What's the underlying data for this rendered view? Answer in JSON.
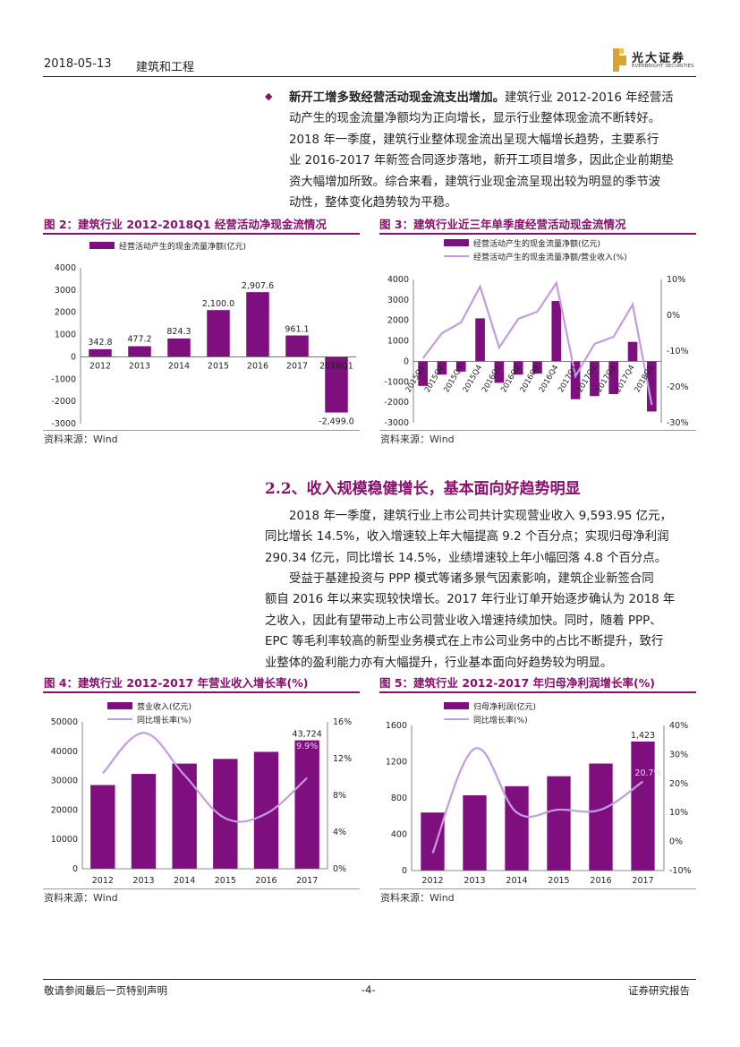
{
  "header": {
    "date": "2018-05-13",
    "category": "建筑和工程",
    "logo_cn": "光大证券",
    "logo_en": "EVERBRIGHT SECURITIES"
  },
  "bullet": {
    "lead": "新开工增多致经营活动现金流支出增加。",
    "lines": [
      "建筑行业 2012-2016 年经营活",
      "动产生的现金流量净额均为正向增长，显示行业整体现金流不断转好。",
      "2018 年一季度，建筑行业整体现金流出呈现大幅增长趋势，主要系行",
      "业 2016-2017 年新签合同逐步落地，新开工项目增多，因此企业前期垫",
      "资大幅增加所致。综合来看，建筑行业现金流呈现出较为明显的季节波",
      "动性，整体变化趋势较为平稳。"
    ]
  },
  "fig2": {
    "title": "图 2：建筑行业 2012-2018Q1 经营活动净现金流情况",
    "source": "资料来源：Wind",
    "chart_data": {
      "type": "bar",
      "legend": [
        "经营活动产生的现金流量净额(亿元)"
      ],
      "categories": [
        "2012",
        "2013",
        "2014",
        "2015",
        "2016",
        "2017",
        "2018Q1"
      ],
      "values": [
        342.8,
        477.2,
        824.3,
        2100.0,
        2907.6,
        961.1,
        -2499.0
      ],
      "labels": [
        "342.8",
        "477.2",
        "824.3",
        "2,100.0",
        "2,907.6",
        "961.1",
        "-2,499.0"
      ],
      "ylim": [
        -3000,
        4000
      ],
      "yticks": [
        -3000,
        -2000,
        -1000,
        0,
        1000,
        2000,
        3000,
        4000
      ],
      "ytick_labels": [
        "-3000",
        "-2000",
        "-1000",
        "0",
        "1000",
        "2000",
        "3000",
        "4000"
      ]
    }
  },
  "fig3": {
    "title": "图 3：建筑行业近三年单季度经营活动现金流情况",
    "source": "资料来源：Wind",
    "chart_data": {
      "type": "bar",
      "legend": [
        "经营活动产生的现金流量净额(亿元)",
        "经营活动产生的现金流量净额/营业收入(%)"
      ],
      "categories": [
        "2015Q1",
        "2015Q2",
        "2015Q3",
        "2015Q4",
        "2016Q1",
        "2016Q2",
        "2016Q3",
        "2016Q4",
        "2017Q1",
        "2017Q2",
        "2017Q3",
        "2017Q4",
        "2018Q1"
      ],
      "values": [
        -1200,
        -650,
        -500,
        2100,
        -1050,
        -650,
        -600,
        2950,
        -1850,
        -1700,
        -1600,
        950,
        -2450
      ],
      "line_values": [
        -12,
        -5,
        -2,
        8,
        -9,
        -1,
        1,
        9,
        -17,
        -8,
        -6,
        3,
        -25
      ],
      "ylim": [
        -3000,
        4000
      ],
      "yticks": [
        -3000,
        -2000,
        -1000,
        0,
        1000,
        2000,
        3000,
        4000
      ],
      "ytick_labels": [
        "-3000",
        "-2000",
        "-1000",
        "0",
        "1000",
        "2000",
        "3000",
        "4000"
      ],
      "y2lim": [
        -30,
        10
      ],
      "y2ticks": [
        -30,
        -20,
        -10,
        0,
        10
      ],
      "y2tick_labels": [
        "-30%",
        "-20%",
        "-10%",
        "0%",
        "10%"
      ]
    }
  },
  "section": {
    "title": "2.2、收入规模稳健增长，基本面向好趋势明显"
  },
  "para1": {
    "lines": [
      "2018 年一季度，建筑行业上市公司共计实现营业收入 9,593.95 亿元，",
      "同比增长 14.5%，收入增速较上年大幅提高 9.2 个百分点；实现归母净利润",
      "290.34 亿元，同比增长 14.5%，业绩增速较上年小幅回落 4.8 个百分点。"
    ]
  },
  "para2": {
    "lines": [
      "受益于基建投资与 PPP 模式等诸多景气因素影响，建筑企业新签合同",
      "额自 2016 年以来实现较快增长。2017 年行业订单开始逐步确认为 2018 年",
      "之收入，因此有望带动上市公司营业收入增速持续加快。同时，随着 PPP、",
      "EPC 等毛利率较高的新型业务模式在上市公司业务中的占比不断提升，致行",
      "业整体的盈利能力亦有大幅提升，行业基本面向好趋势较为明显。"
    ]
  },
  "fig4": {
    "title": "图 4：建筑行业 2012-2017 年营业收入增长率(%)",
    "source": "资料来源：Wind",
    "chart_data": {
      "type": "bar",
      "legend": [
        "营业收入(亿元)",
        "同比增长率(%)"
      ],
      "categories": [
        "2012",
        "2013",
        "2014",
        "2015",
        "2016",
        "2017"
      ],
      "values": [
        28500,
        32300,
        35800,
        37400,
        39800,
        43724
      ],
      "line_values": [
        10.4,
        14.8,
        10.2,
        5.5,
        6.0,
        9.9
      ],
      "bar_label": "43,724",
      "line_label": "9.9%",
      "ylim": [
        0,
        50000
      ],
      "yticks": [
        0,
        10000,
        20000,
        30000,
        40000,
        50000
      ],
      "ytick_labels": [
        "0",
        "10000",
        "20000",
        "30000",
        "40000",
        "50000"
      ],
      "y2lim": [
        0,
        16
      ],
      "y2ticks": [
        0,
        4,
        8,
        12,
        16
      ],
      "y2tick_labels": [
        "0%",
        "4%",
        "8%",
        "12%",
        "16%"
      ]
    }
  },
  "fig5": {
    "title": "图 5：建筑行业 2012-2017 年归母净利润增长率(%)",
    "source": "资料来源：Wind",
    "chart_data": {
      "type": "bar",
      "legend": [
        "归母净利润(亿元)",
        "同比增长率(%)"
      ],
      "categories": [
        "2012",
        "2013",
        "2014",
        "2015",
        "2016",
        "2017"
      ],
      "values": [
        640,
        830,
        930,
        1040,
        1180,
        1423
      ],
      "line_values": [
        -4,
        32,
        10,
        11,
        11,
        20.7
      ],
      "bar_label": "1,423",
      "line_label": "20.7%",
      "ylim": [
        0,
        1600
      ],
      "yticks": [
        0,
        400,
        800,
        1200,
        1600
      ],
      "ytick_labels": [
        "0",
        "400",
        "800",
        "1200",
        "1600"
      ],
      "y2lim": [
        -10,
        40
      ],
      "y2ticks": [
        -10,
        0,
        10,
        20,
        30,
        40
      ],
      "y2tick_labels": [
        "-10%",
        "0%",
        "10%",
        "20%",
        "30%",
        "40%"
      ]
    }
  },
  "footer": {
    "left": "敬请参阅最后一页特别声明",
    "center": "-4-",
    "right": "证券研究报告"
  },
  "colors": {
    "bar": "#7f0f7e",
    "line": "#c49be0",
    "title": "#8a0f6e"
  }
}
